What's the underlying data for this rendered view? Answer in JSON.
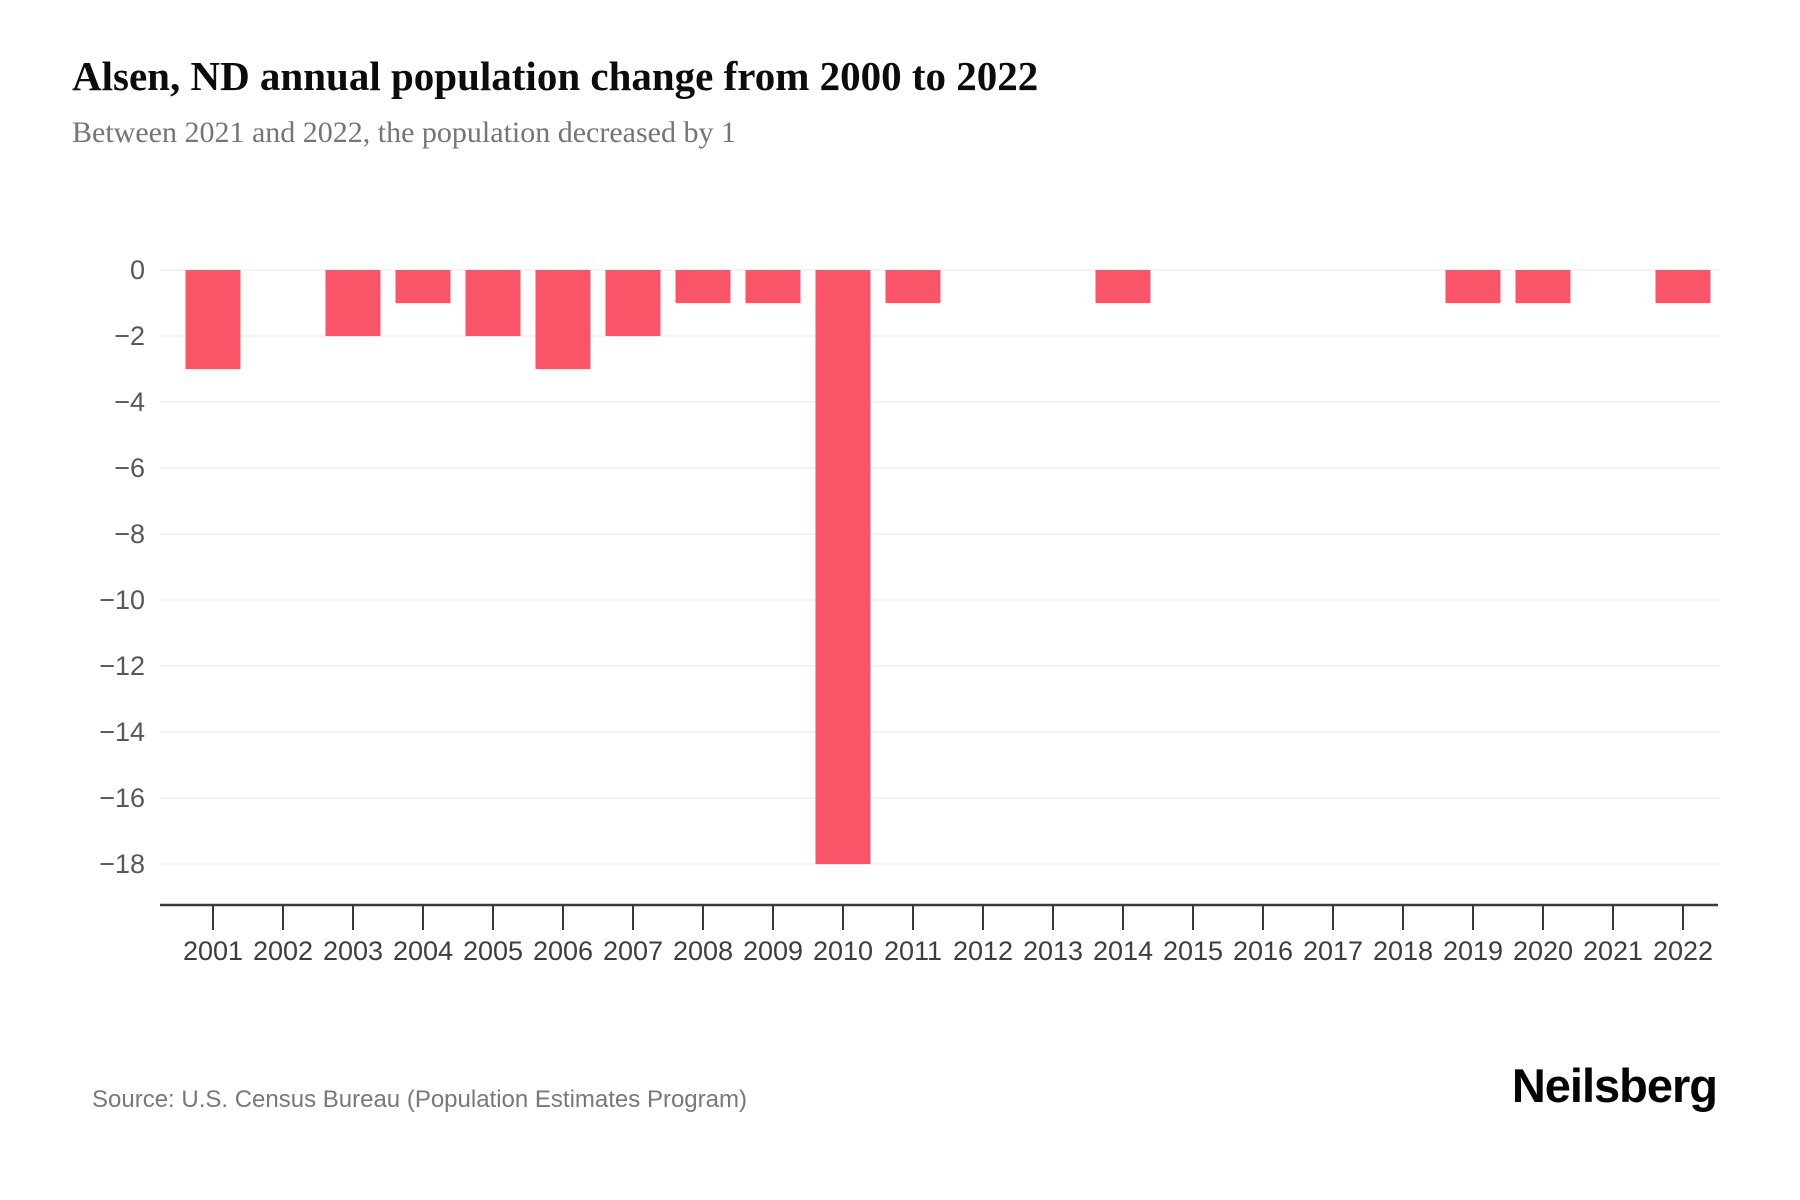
{
  "header": {
    "title": "Alsen, ND annual population change from 2000 to 2022",
    "subtitle": "Between 2021 and 2022, the population decreased by 1"
  },
  "chart_data": {
    "type": "bar",
    "title": "Alsen, ND annual population change from 2000 to 2022",
    "xlabel": "",
    "ylabel": "",
    "categories": [
      "2001",
      "2002",
      "2003",
      "2004",
      "2005",
      "2006",
      "2007",
      "2008",
      "2009",
      "2010",
      "2011",
      "2012",
      "2013",
      "2014",
      "2015",
      "2016",
      "2017",
      "2018",
      "2019",
      "2020",
      "2021",
      "2022"
    ],
    "values": [
      -3,
      0,
      -2,
      -1,
      -2,
      -3,
      -2,
      -1,
      -1,
      -18,
      -1,
      0,
      0,
      -1,
      0,
      0,
      0,
      0,
      -1,
      -1,
      0,
      -1
    ],
    "ylim": [
      -18,
      0
    ],
    "yticks": [
      0,
      -2,
      -4,
      -6,
      -8,
      -10,
      -12,
      -14,
      -16,
      -18
    ],
    "grid": true,
    "legend_position": "none",
    "bar_color": "#fa5469"
  },
  "footer": {
    "source": "Source: U.S. Census Bureau (Population Estimates Program)",
    "brand": "Neilsberg"
  },
  "colors": {
    "bar": "#fa5469",
    "title_text": "#0c0c0c",
    "subtitle_text": "#757575",
    "axis_line": "#3a3a3a",
    "y_tick_label": "#585858",
    "x_tick_label": "#3d3d3d",
    "gridline": "#f3f3f3",
    "source_text": "#787878",
    "brand_text": "#050505",
    "background": "#ffffff"
  }
}
